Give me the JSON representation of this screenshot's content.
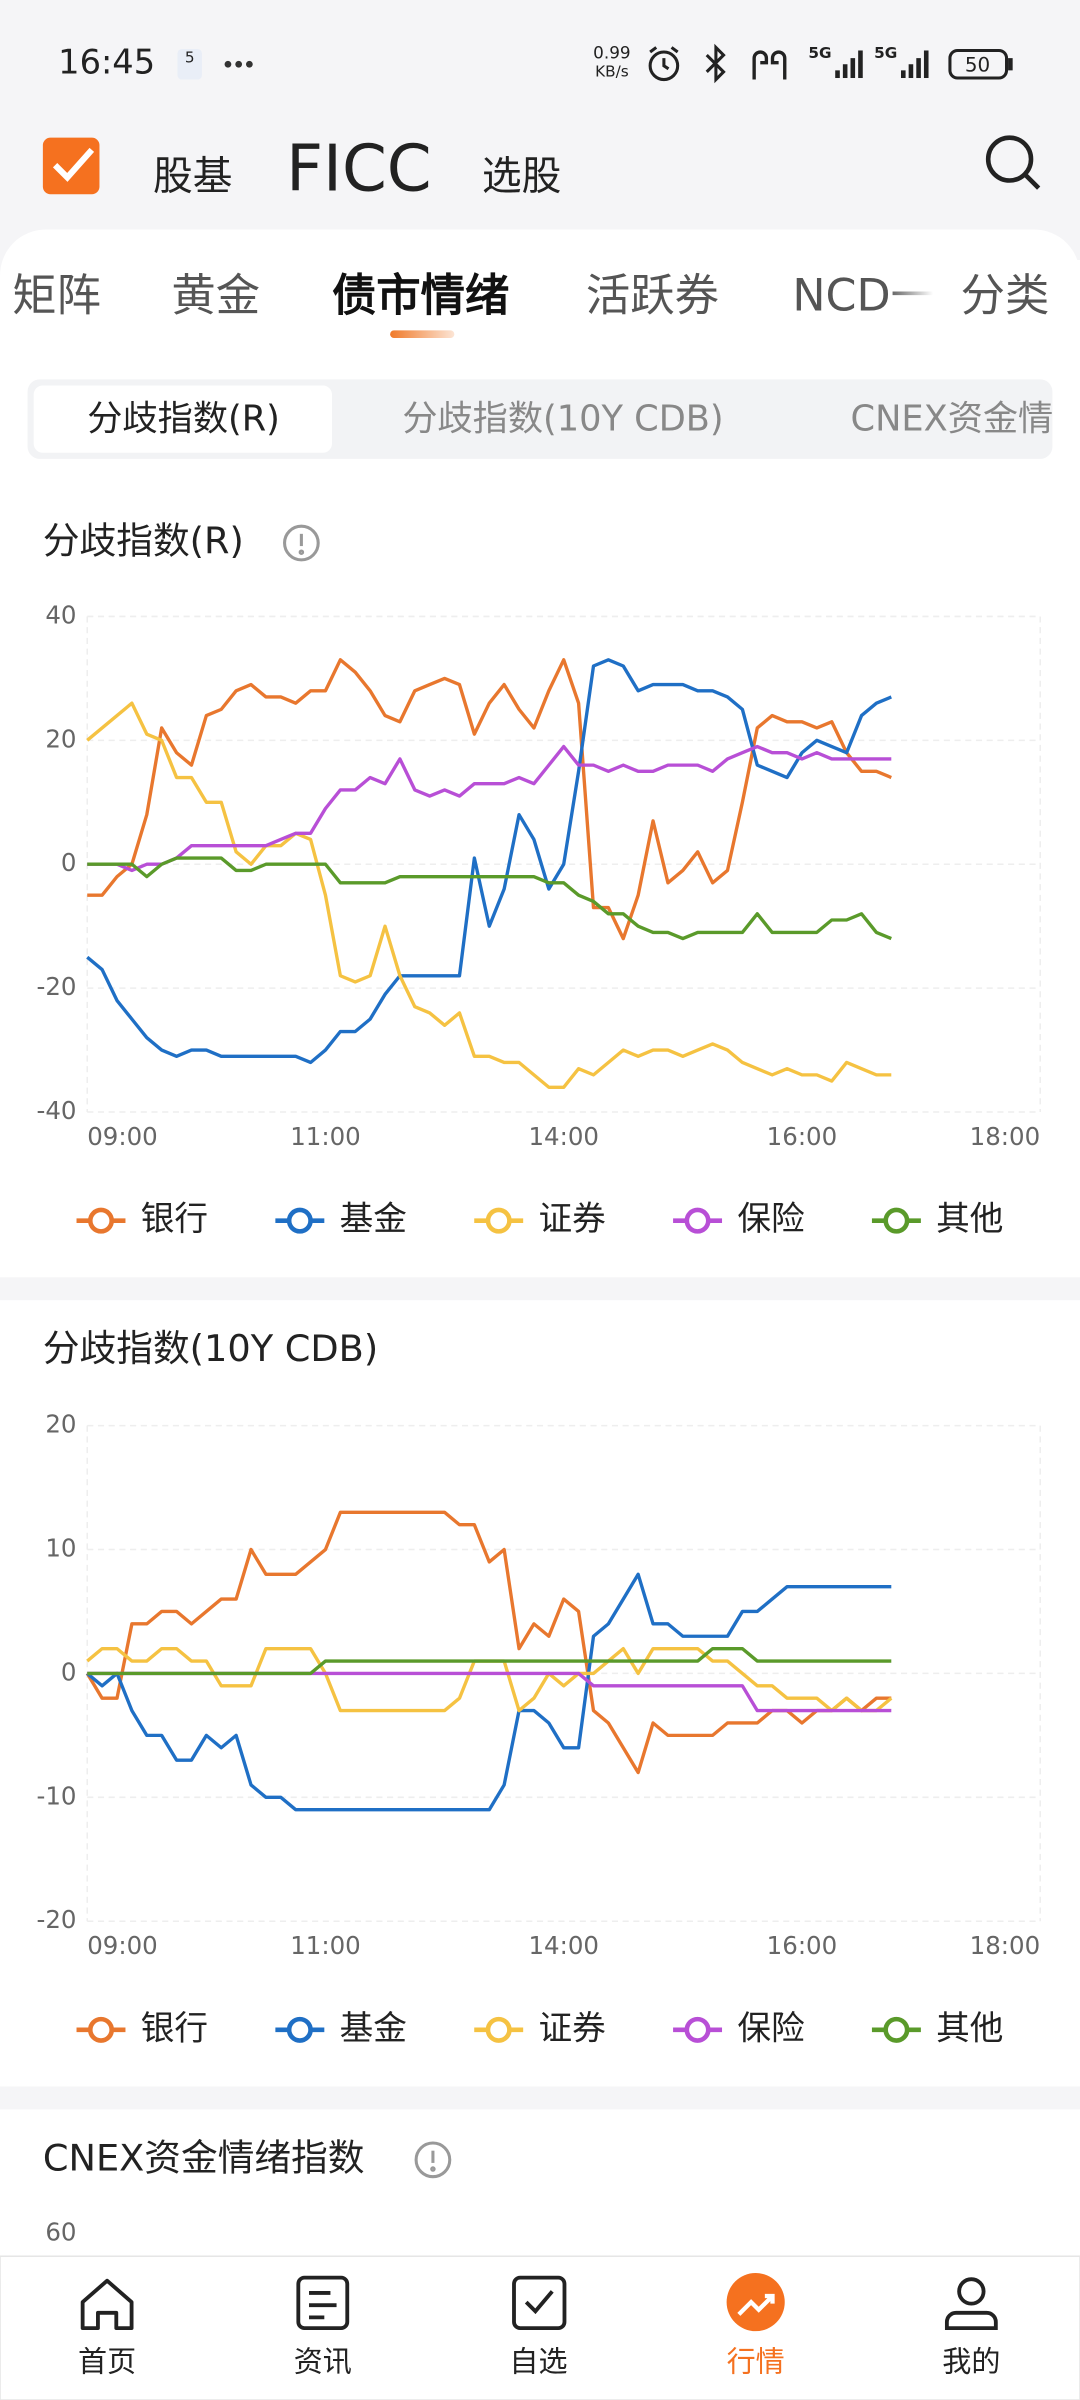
{
  "status_bar": {
    "time": "16:45",
    "badge": "5",
    "speed": "0.99",
    "speed_unit": "KB/s",
    "network_1": "5G",
    "network_2": "5G",
    "battery": "50"
  },
  "header": {
    "tabs": [
      "股基",
      "FICC",
      "选股"
    ]
  },
  "tabs": [
    "矩阵",
    "黄金",
    "债市情绪",
    "活跃券",
    "NCD一级",
    "分类"
  ],
  "segments": [
    "分歧指数(R)",
    "分歧指数(10Y CDB)",
    "CNEX资金情绪"
  ],
  "chart_data": [
    {
      "type": "line",
      "title": "分歧指数(R)",
      "legend": "bottom",
      "grid": true,
      "x": [
        0,
        0.0625,
        0.125,
        0.1875,
        0.25,
        0.3125,
        0.375,
        0.4375,
        0.5,
        0.5625,
        0.625,
        0.6875,
        0.75,
        0.8125,
        0.875,
        0.9375,
        1,
        1.0625,
        1.125,
        1.1875,
        1.25,
        1.3125,
        1.375,
        1.4375,
        1.5,
        1.5625,
        1.625,
        1.6875,
        1.75,
        1.8125,
        1.875,
        1.9375,
        2,
        2.0625,
        2.125,
        2.1875,
        2.25,
        2.3125,
        2.375,
        2.4375,
        2.5,
        2.5625,
        2.625,
        2.6875,
        2.75,
        2.8125,
        2.875,
        2.9375,
        3,
        3.0625,
        3.125,
        3.1875,
        3.25,
        3.3125,
        3.375
      ],
      "xlim": [
        0,
        4
      ],
      "xticks": [
        {
          "value": 0,
          "label": "09:00"
        },
        {
          "value": 1,
          "label": "11:00"
        },
        {
          "value": 2,
          "label": "14:00"
        },
        {
          "value": 3,
          "label": "16:00"
        },
        {
          "value": 4,
          "label": "18:00"
        }
      ],
      "ylim": [
        -40,
        40
      ],
      "yticks": [
        -40,
        -20,
        0,
        20,
        40
      ],
      "series": [
        {
          "name": "银行",
          "color": "#e8772e",
          "values": [
            -5,
            -5,
            -2,
            0,
            8,
            22,
            18,
            16,
            24,
            25,
            28,
            29,
            27,
            27,
            26,
            28,
            28,
            33,
            31,
            28,
            24,
            23,
            28,
            29,
            30,
            29,
            21,
            26,
            29,
            25,
            22,
            28,
            33,
            26,
            -7,
            -7,
            -12,
            -5,
            7,
            -3,
            -1,
            2,
            -3,
            -1,
            10,
            22,
            24,
            23,
            23,
            22,
            23,
            18,
            15,
            15,
            14
          ]
        },
        {
          "name": "基金",
          "color": "#1f6fc5",
          "values": [
            -15,
            -17,
            -22,
            -25,
            -28,
            -30,
            -31,
            -30,
            -30,
            -31,
            -31,
            -31,
            -31,
            -31,
            -31,
            -32,
            -30,
            -27,
            -27,
            -25,
            -21,
            -18,
            -18,
            -18,
            -18,
            -18,
            1,
            -10,
            -4,
            8,
            4,
            -4,
            0,
            15,
            32,
            33,
            32,
            28,
            29,
            29,
            29,
            28,
            28,
            27,
            25,
            16,
            15,
            14,
            18,
            20,
            19,
            18,
            24,
            26,
            27
          ]
        },
        {
          "name": "证券",
          "color": "#f5c242",
          "values": [
            20,
            22,
            24,
            26,
            21,
            20,
            14,
            14,
            10,
            10,
            2,
            0,
            3,
            3,
            5,
            4,
            -5,
            -18,
            -19,
            -18,
            -10,
            -18,
            -23,
            -24,
            -26,
            -24,
            -31,
            -31,
            -32,
            -32,
            -34,
            -36,
            -36,
            -33,
            -34,
            -32,
            -30,
            -31,
            -30,
            -30,
            -31,
            -30,
            -29,
            -30,
            -32,
            -33,
            -34,
            -33,
            -34,
            -34,
            -35,
            -32,
            -33,
            -34,
            -34
          ]
        },
        {
          "name": "保险",
          "color": "#b84fd6",
          "values": [
            0,
            0,
            0,
            -1,
            0,
            0,
            1,
            3,
            3,
            3,
            3,
            3,
            3,
            4,
            5,
            5,
            9,
            12,
            12,
            14,
            13,
            17,
            12,
            11,
            12,
            11,
            13,
            13,
            13,
            14,
            13,
            16,
            19,
            16,
            16,
            15,
            16,
            15,
            15,
            16,
            16,
            16,
            15,
            17,
            18,
            19,
            18,
            18,
            17,
            18,
            17,
            17,
            17,
            17,
            17
          ]
        },
        {
          "name": "其他",
          "color": "#5a9a2a",
          "values": [
            0,
            0,
            0,
            0,
            -2,
            0,
            1,
            1,
            1,
            1,
            -1,
            -1,
            0,
            0,
            0,
            0,
            0,
            -3,
            -3,
            -3,
            -3,
            -2,
            -2,
            -2,
            -2,
            -2,
            -2,
            -2,
            -2,
            -2,
            -2,
            -3,
            -3,
            -5,
            -6,
            -8,
            -8,
            -10,
            -11,
            -11,
            -12,
            -11,
            -11,
            -11,
            -11,
            -8,
            -11,
            -11,
            -11,
            -11,
            -9,
            -9,
            -8,
            -11,
            -12
          ]
        }
      ]
    },
    {
      "type": "line",
      "title": "分歧指数(10Y CDB)",
      "legend": "bottom",
      "grid": true,
      "x": [
        0,
        0.0625,
        0.125,
        0.1875,
        0.25,
        0.3125,
        0.375,
        0.4375,
        0.5,
        0.5625,
        0.625,
        0.6875,
        0.75,
        0.8125,
        0.875,
        0.9375,
        1,
        1.0625,
        1.125,
        1.1875,
        1.25,
        1.3125,
        1.375,
        1.4375,
        1.5,
        1.5625,
        1.625,
        1.6875,
        1.75,
        1.8125,
        1.875,
        1.9375,
        2,
        2.0625,
        2.125,
        2.1875,
        2.25,
        2.3125,
        2.375,
        2.4375,
        2.5,
        2.5625,
        2.625,
        2.6875,
        2.75,
        2.8125,
        2.875,
        2.9375,
        3,
        3.0625,
        3.125,
        3.1875,
        3.25,
        3.3125,
        3.375
      ],
      "xlim": [
        0,
        4
      ],
      "xticks": [
        {
          "value": 0,
          "label": "09:00"
        },
        {
          "value": 1,
          "label": "11:00"
        },
        {
          "value": 2,
          "label": "14:00"
        },
        {
          "value": 3,
          "label": "16:00"
        },
        {
          "value": 4,
          "label": "18:00"
        }
      ],
      "ylim": [
        -20,
        20
      ],
      "yticks": [
        -20,
        -10,
        0,
        10,
        20
      ],
      "series": [
        {
          "name": "银行",
          "color": "#e8772e",
          "values": [
            0,
            -2,
            -2,
            4,
            4,
            5,
            5,
            4,
            5,
            6,
            6,
            10,
            8,
            8,
            8,
            9,
            10,
            13,
            13,
            13,
            13,
            13,
            13,
            13,
            13,
            12,
            12,
            9,
            10,
            2,
            4,
            3,
            6,
            5,
            -3,
            -4,
            -6,
            -8,
            -4,
            -5,
            -5,
            -5,
            -5,
            -4,
            -4,
            -4,
            -3,
            -3,
            -4,
            -3,
            -3,
            -2,
            -3,
            -2,
            -2
          ]
        },
        {
          "name": "基金",
          "color": "#1f6fc5",
          "values": [
            0,
            -1,
            0,
            -3,
            -5,
            -5,
            -7,
            -7,
            -5,
            -6,
            -5,
            -9,
            -10,
            -10,
            -11,
            -11,
            -11,
            -11,
            -11,
            -11,
            -11,
            -11,
            -11,
            -11,
            -11,
            -11,
            -11,
            -11,
            -9,
            -3,
            -3,
            -4,
            -6,
            -6,
            3,
            4,
            6,
            8,
            4,
            4,
            3,
            3,
            3,
            3,
            5,
            5,
            6,
            7,
            7,
            7,
            7,
            7,
            7,
            7,
            7
          ]
        },
        {
          "name": "证券",
          "color": "#f5c242",
          "values": [
            1,
            2,
            2,
            1,
            1,
            2,
            2,
            1,
            1,
            -1,
            -1,
            -1,
            2,
            2,
            2,
            2,
            0,
            -3,
            -3,
            -3,
            -3,
            -3,
            -3,
            -3,
            -3,
            -2,
            1,
            1,
            1,
            -3,
            -2,
            0,
            -1,
            0,
            0,
            1,
            2,
            0,
            2,
            2,
            2,
            2,
            1,
            1,
            0,
            -1,
            -1,
            -2,
            -2,
            -2,
            -3,
            -2,
            -3,
            -3,
            -2
          ]
        },
        {
          "name": "保险",
          "color": "#b84fd6",
          "values": [
            0,
            0,
            0,
            0,
            0,
            0,
            0,
            0,
            0,
            0,
            0,
            0,
            0,
            0,
            0,
            0,
            0,
            0,
            0,
            0,
            0,
            0,
            0,
            0,
            0,
            0,
            0,
            0,
            0,
            0,
            0,
            0,
            0,
            0,
            -1,
            -1,
            -1,
            -1,
            -1,
            -1,
            -1,
            -1,
            -1,
            -1,
            -1,
            -3,
            -3,
            -3,
            -3,
            -3,
            -3,
            -3,
            -3,
            -3,
            -3
          ]
        },
        {
          "name": "其他",
          "color": "#5a9a2a",
          "values": [
            0,
            0,
            0,
            0,
            0,
            0,
            0,
            0,
            0,
            0,
            0,
            0,
            0,
            0,
            0,
            0,
            1,
            1,
            1,
            1,
            1,
            1,
            1,
            1,
            1,
            1,
            1,
            1,
            1,
            1,
            1,
            1,
            1,
            1,
            1,
            1,
            1,
            1,
            1,
            1,
            1,
            1,
            2,
            2,
            2,
            1,
            1,
            1,
            1,
            1,
            1,
            1,
            1,
            1,
            1
          ]
        }
      ]
    }
  ],
  "cnex_preview": {
    "title": "CNEX资金情绪指数",
    "ytick": 60
  },
  "nav": [
    {
      "label": "首页"
    },
    {
      "label": "资讯"
    },
    {
      "label": "自选"
    },
    {
      "label": "行情"
    },
    {
      "label": "我的"
    }
  ]
}
